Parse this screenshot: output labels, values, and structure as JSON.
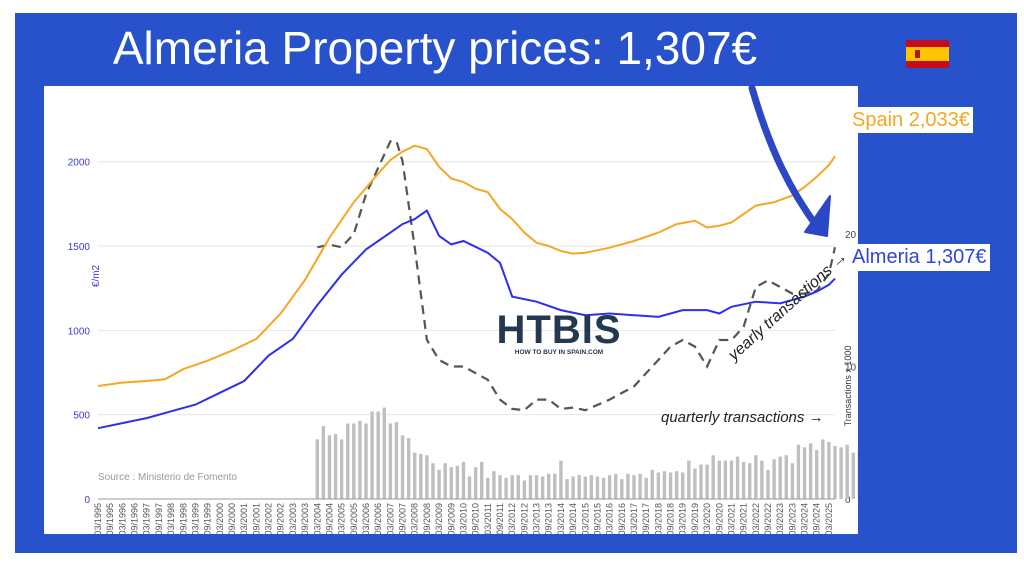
{
  "headline": "Almeria Property prices: 1,307€",
  "flag_icon": "spain-flag-icon",
  "colors": {
    "panel": "#2852cc",
    "spain_line": "#f5a623",
    "almeria_line": "#2e2ef0",
    "yearly_line": "#555555",
    "quarterly_bars": "#bfbfbf"
  },
  "labels": {
    "spain": "Spain 2,033€",
    "almeria": "Almeria 1,307€",
    "yearly": "yearly transactions →",
    "quarterly": "quarterly transactions →",
    "source": "Source : Ministerio de Fomento",
    "logo": "HTBIS",
    "logo_tagline": "HOW TO BUY IN SPAIN.COM"
  },
  "chart_data": {
    "type": "line",
    "ylabel": "€/m2",
    "ylabel_right": "Transactions x 1000",
    "ylim": [
      0,
      2200
    ],
    "ylim_right": [
      0,
      28
    ],
    "yticks": [
      0,
      500,
      1000,
      1500,
      2000
    ],
    "yticks_right": [
      0,
      10,
      20
    ],
    "x_range": [
      1995.0,
      2025.25
    ],
    "x_tick_labels": [
      "03/1995",
      "09/1995",
      "03/1996",
      "09/1996",
      "03/1997",
      "09/1997",
      "03/1998",
      "09/1998",
      "03/1999",
      "09/1999",
      "03/2000",
      "09/2000",
      "03/2001",
      "09/2001",
      "03/2002",
      "09/2002",
      "03/2003",
      "09/2003",
      "03/2004",
      "09/2004",
      "03/2005",
      "09/2005",
      "03/2006",
      "09/2006",
      "03/2007",
      "09/2007",
      "03/2008",
      "09/2008",
      "03/2009",
      "09/2009",
      "03/2010",
      "09/2010",
      "03/2011",
      "09/2011",
      "03/2012",
      "09/2012",
      "03/2013",
      "09/2013",
      "03/2014",
      "09/2014",
      "03/2015",
      "09/2015",
      "03/2016",
      "09/2016",
      "03/2017",
      "09/2017",
      "03/2018",
      "09/2018",
      "03/2019",
      "09/2019",
      "03/2020",
      "09/2020",
      "03/2021",
      "09/2021",
      "03/2022",
      "09/2022",
      "03/2023",
      "09/2023",
      "03/2024",
      "09/2024",
      "03/2025"
    ],
    "series": [
      {
        "name": "Spain",
        "axis": "left",
        "x": [
          1995.0,
          1996.0,
          1997.0,
          1997.75,
          1998.5,
          1999.5,
          2000.5,
          2001.5,
          2002.5,
          2003.5,
          2004.5,
          2005.5,
          2006.5,
          2007.0,
          2007.5,
          2008.0,
          2008.5,
          2009.0,
          2009.5,
          2010.0,
          2010.5,
          2011.0,
          2011.5,
          2012.0,
          2012.5,
          2013.0,
          2013.5,
          2014.0,
          2014.5,
          2015.0,
          2016.0,
          2017.0,
          2018.0,
          2018.75,
          2019.5,
          2020.0,
          2020.5,
          2021.0,
          2022.0,
          2022.75,
          2023.5,
          2024.0,
          2024.5,
          2025.0,
          2025.25
        ],
        "values": [
          670,
          690,
          700,
          710,
          770,
          820,
          880,
          950,
          1100,
          1300,
          1550,
          1760,
          1930,
          2010,
          2060,
          2095,
          2075,
          1970,
          1900,
          1880,
          1840,
          1820,
          1720,
          1660,
          1580,
          1520,
          1500,
          1470,
          1455,
          1460,
          1490,
          1530,
          1580,
          1630,
          1650,
          1610,
          1620,
          1640,
          1740,
          1760,
          1800,
          1850,
          1910,
          1980,
          2033
        ]
      },
      {
        "name": "Almeria",
        "axis": "left",
        "x": [
          1995.0,
          1996.0,
          1997.0,
          1998.0,
          1999.0,
          2000.0,
          2001.0,
          2002.0,
          2003.0,
          2004.0,
          2005.0,
          2006.0,
          2007.0,
          2007.5,
          2008.0,
          2008.5,
          2009.0,
          2009.5,
          2010.0,
          2011.0,
          2011.5,
          2012.0,
          2013.0,
          2014.0,
          2015.0,
          2016.0,
          2017.0,
          2018.0,
          2019.0,
          2020.0,
          2020.5,
          2021.0,
          2022.0,
          2023.0,
          2024.0,
          2024.5,
          2025.0,
          2025.25
        ],
        "values": [
          420,
          450,
          480,
          520,
          560,
          630,
          700,
          850,
          950,
          1150,
          1330,
          1480,
          1580,
          1630,
          1660,
          1710,
          1560,
          1510,
          1530,
          1460,
          1400,
          1200,
          1170,
          1120,
          1090,
          1100,
          1090,
          1080,
          1120,
          1120,
          1100,
          1140,
          1170,
          1160,
          1200,
          1230,
          1270,
          1307
        ]
      },
      {
        "name": "yearly transactions",
        "axis": "right",
        "style": "dashed",
        "x": [
          2004.0,
          2004.5,
          2005.0,
          2005.5,
          2006.0,
          2006.5,
          2007.0,
          2007.25,
          2007.5,
          2008.0,
          2008.5,
          2009.0,
          2009.5,
          2010.0,
          2010.5,
          2011.0,
          2011.5,
          2012.0,
          2012.5,
          2013.0,
          2013.5,
          2014.0,
          2014.5,
          2015.0,
          2016.0,
          2017.0,
          2018.0,
          2018.5,
          2019.0,
          2019.5,
          2020.0,
          2020.5,
          2021.0,
          2021.5,
          2022.0,
          2022.5,
          2023.0,
          2023.5,
          2024.0,
          2024.5,
          2025.0,
          2025.25
        ],
        "values": [
          19,
          19.2,
          19,
          20,
          23,
          25,
          27,
          27,
          25.5,
          19,
          12,
          10.5,
          10,
          10,
          9.5,
          9,
          7.5,
          6.8,
          6.7,
          7.5,
          7.5,
          6.8,
          6.9,
          6.7,
          7.5,
          8.5,
          10.5,
          11.5,
          12,
          11.5,
          10,
          12,
          12,
          13,
          16,
          16.5,
          16,
          15.5,
          15.5,
          15.7,
          17,
          19
        ]
      }
    ],
    "bars": {
      "name": "quarterly transactions",
      "axis": "right",
      "x_start": 2004.0,
      "step": 0.25,
      "values": [
        4.5,
        5.5,
        4.8,
        4.9,
        4.5,
        5.7,
        5.7,
        5.9,
        5.7,
        6.6,
        6.6,
        6.9,
        5.7,
        5.8,
        4.8,
        4.6,
        3.5,
        3.4,
        3.3,
        2.7,
        2.2,
        2.7,
        2.4,
        2.5,
        2.8,
        1.7,
        2.4,
        2.8,
        1.6,
        2.1,
        1.8,
        1.6,
        1.8,
        1.8,
        1.4,
        1.8,
        1.8,
        1.7,
        1.9,
        1.9,
        2.9,
        1.5,
        1.7,
        1.8,
        1.7,
        1.8,
        1.7,
        1.6,
        1.8,
        1.9,
        1.5,
        1.9,
        1.8,
        1.9,
        1.6,
        2.2,
        2.0,
        2.1,
        2.0,
        2.1,
        2.0,
        2.9,
        2.3,
        2.6,
        2.6,
        3.3,
        2.9,
        2.9,
        2.9,
        3.2,
        2.8,
        2.7,
        3.3,
        2.9,
        2.2,
        3.0,
        3.2,
        3.3,
        2.7,
        4.1,
        3.9,
        4.2,
        3.7,
        4.5,
        4.3,
        4.0,
        3.9,
        4.1,
        3.5,
        3.6,
        3.5,
        3.3,
        3.8,
        4.1,
        3.8,
        4.6,
        4.6
      ]
    }
  }
}
